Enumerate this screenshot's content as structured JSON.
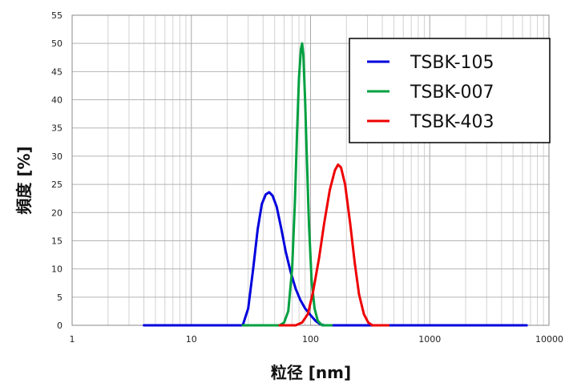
{
  "chart_data": {
    "type": "line",
    "xlabel": "粒径 [nm]",
    "ylabel": "頻度 [%]",
    "x_scale": "log",
    "xlim": [
      1,
      10000
    ],
    "ylim": [
      0,
      55
    ],
    "x_ticks": [
      "1",
      "10",
      "100",
      "1000",
      "10000"
    ],
    "y_ticks": [
      "0",
      "5",
      "10",
      "15",
      "20",
      "25",
      "30",
      "35",
      "40",
      "45",
      "50",
      "55"
    ],
    "grid": true,
    "legend_position": "top-right",
    "series": [
      {
        "name": "TSBK-105",
        "color": "#0000dd",
        "points": [
          [
            4,
            0
          ],
          [
            27,
            0
          ],
          [
            30,
            3
          ],
          [
            33,
            10
          ],
          [
            36,
            17
          ],
          [
            39,
            21.5
          ],
          [
            42,
            23.2
          ],
          [
            45,
            23.6
          ],
          [
            48,
            23
          ],
          [
            52,
            21
          ],
          [
            57,
            17
          ],
          [
            62,
            13
          ],
          [
            68,
            9.5
          ],
          [
            75,
            6.5
          ],
          [
            82,
            4.5
          ],
          [
            90,
            3
          ],
          [
            100,
            1.8
          ],
          [
            110,
            0.8
          ],
          [
            120,
            0.2
          ],
          [
            130,
            0
          ],
          [
            6500,
            0
          ]
        ]
      },
      {
        "name": "TSBK-007",
        "color": "#00a040",
        "points": [
          [
            27,
            0
          ],
          [
            55,
            0
          ],
          [
            60,
            0.5
          ],
          [
            65,
            2.5
          ],
          [
            70,
            10
          ],
          [
            74,
            22
          ],
          [
            77,
            34
          ],
          [
            80,
            44
          ],
          [
            83,
            49
          ],
          [
            85,
            50
          ],
          [
            87,
            48
          ],
          [
            90,
            40
          ],
          [
            93,
            30
          ],
          [
            97,
            18
          ],
          [
            102,
            8
          ],
          [
            108,
            3
          ],
          [
            115,
            0.8
          ],
          [
            125,
            0
          ],
          [
            150,
            0
          ]
        ]
      },
      {
        "name": "TSBK-403",
        "color": "#ee0000",
        "points": [
          [
            55,
            0
          ],
          [
            75,
            0
          ],
          [
            85,
            0.5
          ],
          [
            95,
            2
          ],
          [
            105,
            6
          ],
          [
            118,
            12
          ],
          [
            130,
            18
          ],
          [
            145,
            24
          ],
          [
            160,
            27.5
          ],
          [
            170,
            28.5
          ],
          [
            180,
            28
          ],
          [
            195,
            25
          ],
          [
            215,
            18
          ],
          [
            235,
            11
          ],
          [
            255,
            5.5
          ],
          [
            280,
            2
          ],
          [
            305,
            0.5
          ],
          [
            330,
            0
          ],
          [
            450,
            0
          ]
        ]
      }
    ]
  }
}
